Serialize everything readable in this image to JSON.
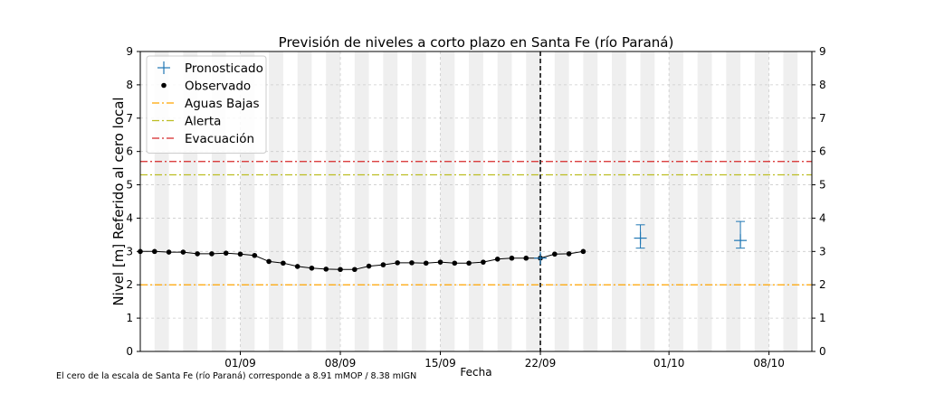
{
  "footnote": "El cero de la escala de Santa Fe (río Paraná) corresponde a 8.91 mMOP / 8.38 mIGN",
  "chart_data": {
    "type": "line",
    "title": "Previsión de niveles a corto plazo en Santa Fe (río Paraná)",
    "xlabel": "Fecha",
    "ylabel": "Nivel [m] Referido al cero local",
    "xlim": [
      "2022-08-25",
      "2022-10-11"
    ],
    "ylim": [
      0,
      9
    ],
    "y_ticks": [
      0,
      1,
      2,
      3,
      4,
      5,
      6,
      7,
      8,
      9
    ],
    "x_ticks": [
      {
        "date": "2022-09-01",
        "label": "01/09"
      },
      {
        "date": "2022-09-08",
        "label": "08/09"
      },
      {
        "date": "2022-09-15",
        "label": "15/09"
      },
      {
        "date": "2022-09-22",
        "label": "22/09"
      },
      {
        "date": "2022-10-01",
        "label": "01/10"
      },
      {
        "date": "2022-10-08",
        "label": "08/10"
      }
    ],
    "grid": true,
    "right_axis_mirrored": true,
    "legend_position": "top-left",
    "current_date_line": "2022-09-22",
    "series": [
      {
        "name": "Observado",
        "marker": "dot",
        "color": "#000000",
        "points": [
          [
            "2022-08-25",
            3.0
          ],
          [
            "2022-08-26",
            3.0
          ],
          [
            "2022-08-27",
            2.98
          ],
          [
            "2022-08-28",
            2.98
          ],
          [
            "2022-08-29",
            2.93
          ],
          [
            "2022-08-30",
            2.93
          ],
          [
            "2022-08-31",
            2.95
          ],
          [
            "2022-09-01",
            2.92
          ],
          [
            "2022-09-02",
            2.88
          ],
          [
            "2022-09-03",
            2.7
          ],
          [
            "2022-09-04",
            2.65
          ],
          [
            "2022-09-05",
            2.55
          ],
          [
            "2022-09-06",
            2.5
          ],
          [
            "2022-09-07",
            2.47
          ],
          [
            "2022-09-08",
            2.46
          ],
          [
            "2022-09-09",
            2.46
          ],
          [
            "2022-09-10",
            2.56
          ],
          [
            "2022-09-11",
            2.6
          ],
          [
            "2022-09-12",
            2.66
          ],
          [
            "2022-09-13",
            2.66
          ],
          [
            "2022-09-14",
            2.65
          ],
          [
            "2022-09-15",
            2.68
          ],
          [
            "2022-09-16",
            2.65
          ],
          [
            "2022-09-17",
            2.65
          ],
          [
            "2022-09-18",
            2.68
          ],
          [
            "2022-09-19",
            2.77
          ],
          [
            "2022-09-20",
            2.8
          ],
          [
            "2022-09-21",
            2.8
          ],
          [
            "2022-09-22",
            2.8
          ],
          [
            "2022-09-23",
            2.92
          ],
          [
            "2022-09-24",
            2.93
          ],
          [
            "2022-09-25",
            3.0
          ]
        ]
      },
      {
        "name": "Pronosticado",
        "marker": "plus",
        "color": "#1f77b4",
        "points": [
          {
            "date": "2022-09-22",
            "value": 2.8,
            "low": 2.8,
            "high": 2.8
          },
          {
            "date": "2022-09-29",
            "value": 3.4,
            "low": 3.1,
            "high": 3.8
          },
          {
            "date": "2022-10-06",
            "value": 3.33,
            "low": 3.1,
            "high": 3.9
          }
        ]
      }
    ],
    "thresholds": [
      {
        "name": "Aguas Bajas",
        "value": 2.0,
        "color": "#ffa500"
      },
      {
        "name": "Alerta",
        "value": 5.3,
        "color": "#bcbd22"
      },
      {
        "name": "Evacuación",
        "value": 5.7,
        "color": "#d62728"
      }
    ],
    "legend": [
      "Pronosticado",
      "Observado",
      "Aguas Bajas",
      "Alerta",
      "Evacuación"
    ]
  }
}
